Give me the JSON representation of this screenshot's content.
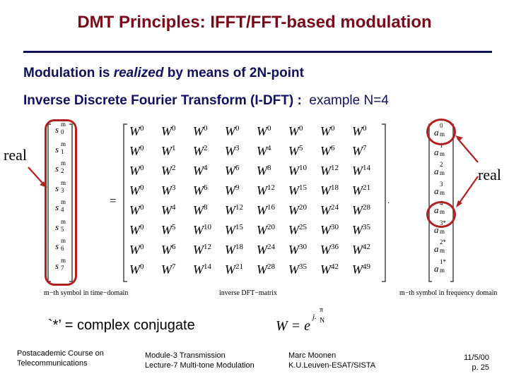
{
  "title": "DMT Principles: IFFT/FFT-based modulation",
  "intro": {
    "line1_pre": "Modulation is ",
    "line1_em": "realized",
    "line1_post": " by means of 2N-point",
    "line2": "Inverse Discrete Fourier Transform (I-DFT) :",
    "line2_example": "example N=4"
  },
  "real_left": "real",
  "real_right": "real",
  "equals": "=",
  "dot": ".",
  "time_vector": {
    "symbols": [
      "s",
      "s",
      "s",
      "s",
      "s",
      "s",
      "s",
      "s"
    ],
    "subs": [
      "0",
      "1",
      "2",
      "3",
      "4",
      "5",
      "6",
      "7"
    ],
    "supscript": "m",
    "caption": "m−th symbol in time−domain"
  },
  "matrix": {
    "base": "W",
    "exponents": [
      [
        "0",
        "0",
        "0",
        "0",
        "0",
        "0",
        "0",
        "0"
      ],
      [
        "0",
        "1",
        "2",
        "3",
        "4",
        "5",
        "6",
        "7"
      ],
      [
        "0",
        "2",
        "4",
        "6",
        "8",
        "10",
        "12",
        "14"
      ],
      [
        "0",
        "3",
        "6",
        "9",
        "12",
        "15",
        "18",
        "21"
      ],
      [
        "0",
        "4",
        "8",
        "12",
        "16",
        "20",
        "24",
        "28"
      ],
      [
        "0",
        "5",
        "10",
        "15",
        "20",
        "25",
        "30",
        "35"
      ],
      [
        "0",
        "6",
        "12",
        "18",
        "24",
        "30",
        "36",
        "42"
      ],
      [
        "0",
        "7",
        "14",
        "21",
        "28",
        "35",
        "42",
        "49"
      ]
    ],
    "caption": "inverse DFT−matrix"
  },
  "freq_vector": {
    "symbol": "a",
    "sub": "m",
    "sups": [
      "0",
      "1",
      "2",
      "3",
      "4",
      "3*",
      "2*",
      "1*"
    ],
    "caption": "m−th symbol in frequency domain"
  },
  "note": {
    "conj": "`*’ = complex conjugate",
    "w_lhs": "W = e",
    "w_exp_top": "j.",
    "w_exp_num": "π",
    "w_exp_den": "N"
  },
  "footer": {
    "left_1": "Postacademic Course on",
    "left_2": "Telecommunications",
    "mid_1": "Module-3  Transmission",
    "mid_2": "Lecture-7  Multi-tone Modulation",
    "right_1": "Marc Moonen",
    "right_2": "K.U.Leuven-ESAT/SISTA",
    "date": "11/5/00",
    "page": "p. 25"
  },
  "colors": {
    "title": "#7a0a1a",
    "text": "#101060",
    "highlight": "#b02020"
  }
}
